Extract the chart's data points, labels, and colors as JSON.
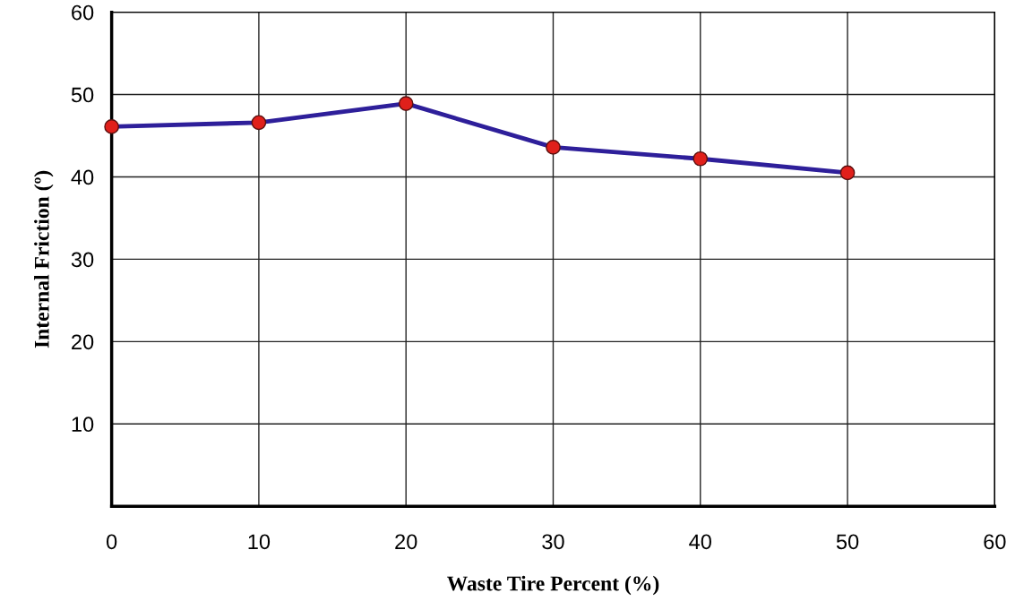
{
  "chart_data": {
    "type": "line",
    "xlabel": "Waste Tire Percent (%)",
    "ylabel": "Internal Friction (º)",
    "x": [
      0,
      10,
      20,
      30,
      40,
      50
    ],
    "series": [
      {
        "color": "#2e1f9a",
        "colors": [
          "#e0201b",
          "#e0201b",
          "#e0201b",
          "#e0201b",
          "#e0201b",
          "#e0201b"
        ],
        "values": [
          46.1,
          46.6,
          48.9,
          43.6,
          42.2,
          40.5
        ]
      }
    ],
    "marker": "circle",
    "line_style": "solid",
    "xlim": [
      0,
      60
    ],
    "xticks": [
      0,
      10,
      20,
      30,
      40,
      50,
      60
    ],
    "ylim": [
      0,
      60
    ],
    "yticks": [
      10,
      20,
      30,
      40,
      50,
      60
    ],
    "grid": true
  }
}
